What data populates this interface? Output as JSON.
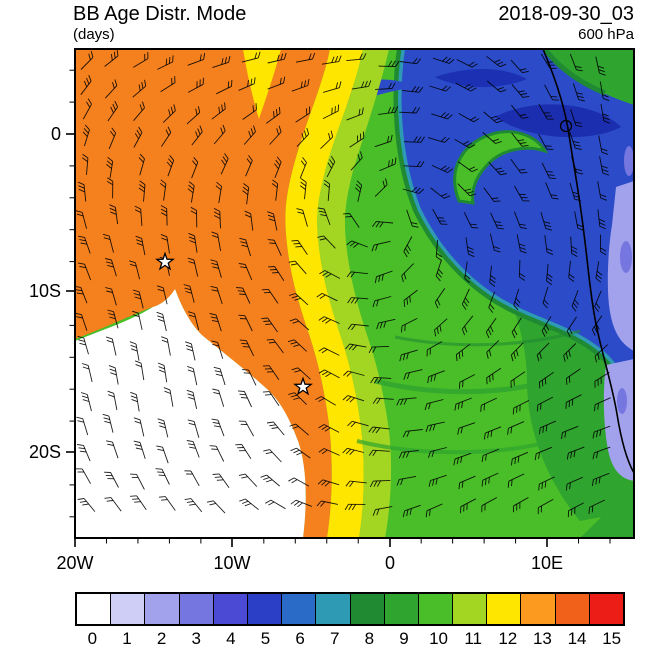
{
  "header": {
    "title": "BB Age Distr. Mode",
    "units": "(days)",
    "datetime": "2018-09-30_03",
    "level": "600 hPa"
  },
  "map": {
    "x_ticks": [
      {
        "label": "20W",
        "x": 0
      },
      {
        "label": "10W",
        "x": 157
      },
      {
        "label": "0",
        "x": 315
      },
      {
        "label": "10E",
        "x": 472
      }
    ],
    "y_ticks": [
      {
        "label": "0",
        "y": 85
      },
      {
        "label": "10S",
        "y": 242
      },
      {
        "label": "20S",
        "y": 403
      }
    ],
    "markers": [
      {
        "symbol": "star",
        "x": 90,
        "y": 213
      },
      {
        "symbol": "star",
        "x": 228,
        "y": 338
      }
    ]
  },
  "chart_data": {
    "type": "heatmap",
    "title": "BB Age Distr. Mode",
    "units": "(days)",
    "datetime": "2018-09-30_03",
    "level": "600 hPa",
    "x_axis": {
      "tick_labels": [
        "20W",
        "10W",
        "0",
        "10E"
      ]
    },
    "y_axis": {
      "tick_labels": [
        "0",
        "10S",
        "20S"
      ]
    },
    "colorbar": {
      "tick_labels": [
        "0",
        "1",
        "2",
        "3",
        "4",
        "5",
        "6",
        "7",
        "8",
        "9",
        "10",
        "11",
        "12",
        "13",
        "14",
        "15"
      ],
      "colors": [
        "#FFFFFF",
        "#CECEF6",
        "#A2A2EC",
        "#7676E0",
        "#4A4AD4",
        "#2B3FC6",
        "#2B6BC8",
        "#2E9AB4",
        "#1F8A32",
        "#2FA42F",
        "#49BE28",
        "#A2D622",
        "#FFE600",
        "#FB9A1E",
        "#F2611A",
        "#EC1C16"
      ]
    },
    "overlays": [
      "wind barbs",
      "African coastline",
      "two star markers"
    ],
    "markers": [
      {
        "symbol": "star",
        "approx_position": "8S, 14.5W"
      },
      {
        "symbol": "star",
        "approx_position": "16S, 5.5W"
      }
    ],
    "field_regions": [
      {
        "region": "northwest quadrant",
        "mode_age_days": "13-14 (orange)"
      },
      {
        "region": "diagonal transition band",
        "mode_age_days": "11-12 (yellow / yellow-green)"
      },
      {
        "region": "center and southeast",
        "mode_age_days": "9-10 (green)"
      },
      {
        "region": "northeast and east offshore",
        "mode_age_days": "4-6 (blue)"
      },
      {
        "region": "far east edge patches over land",
        "mode_age_days": "1-3 (lavender/purple)"
      },
      {
        "region": "southwest quadrant",
        "mode_age_days": "0 (white)"
      }
    ]
  }
}
